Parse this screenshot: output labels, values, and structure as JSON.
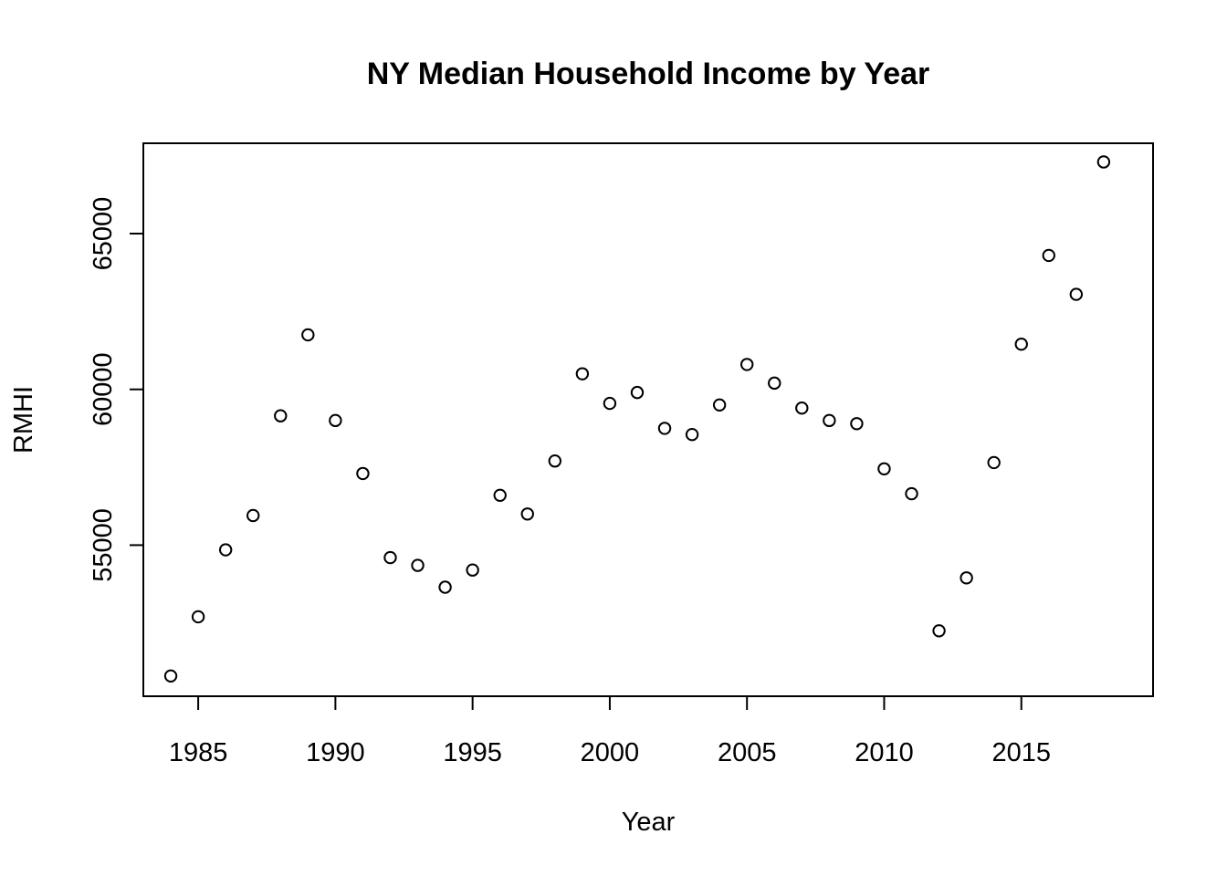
{
  "chart_data": {
    "type": "scatter",
    "title": "NY Median Household Income by Year",
    "xlabel": "Year",
    "ylabel": "RMHI",
    "xlim": [
      1983,
      2019.8
    ],
    "ylim": [
      50150,
      67900
    ],
    "x_ticks": [
      1985,
      1990,
      1995,
      2000,
      2005,
      2010,
      2015
    ],
    "y_ticks": [
      55000,
      60000,
      65000
    ],
    "grid": false,
    "legend": "none",
    "marker": "open-circle",
    "colors": {
      "marker": "#000000",
      "axis": "#000000",
      "background": "#ffffff"
    },
    "series": [
      {
        "x": [
          1984,
          1985,
          1986,
          1987,
          1988,
          1989,
          1990,
          1991,
          1992,
          1993,
          1994,
          1995,
          1996,
          1997,
          1998,
          1999,
          2000,
          2001,
          2002,
          2003,
          2004,
          2005,
          2006,
          2007,
          2008,
          2009,
          2010,
          2011,
          2012,
          2013,
          2014,
          2015,
          2016,
          2017,
          2018
        ],
        "y": [
          50800,
          52700,
          54850,
          55950,
          59150,
          61750,
          59000,
          57300,
          54600,
          54350,
          53650,
          54200,
          56600,
          56000,
          57700,
          60500,
          59550,
          59900,
          58750,
          58550,
          59500,
          60800,
          60200,
          59400,
          59000,
          58900,
          57450,
          56650,
          52250,
          53950,
          57650,
          61450,
          64300,
          63050,
          67300
        ]
      }
    ]
  }
}
